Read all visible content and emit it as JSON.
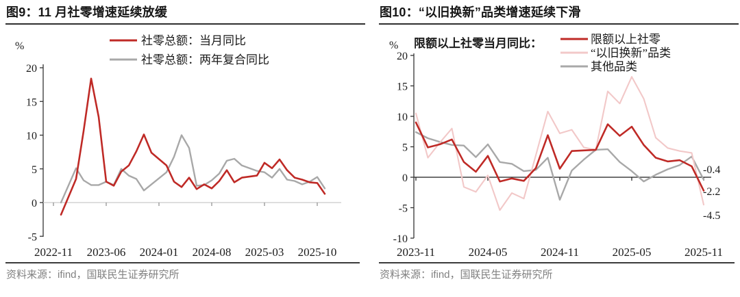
{
  "panels": [
    {
      "title": "图9：11 月社零增速延续放缓",
      "source_note": "资料来源：ifind，国联民生证券研究所"
    },
    {
      "title": "图10：“以旧换新”品类增速延续下滑",
      "source_note": "资料来源：ifind，国联民生证券研究所"
    }
  ],
  "colors": {
    "red": "#bf2a26",
    "pink": "#f2c8c8",
    "gray": "#a8a8a8",
    "axis": "#333333",
    "zero_left": "#c9c9c9",
    "zero_right": "#1a1a1a",
    "title": "#161616",
    "source": "#808080"
  },
  "chart_data": [
    {
      "type": "line",
      "title": "图9：11 月社零增速延续放缓",
      "unit_label": "%",
      "ylim": [
        -5,
        20
      ],
      "yticks": [
        20,
        15,
        10,
        5,
        0,
        -5
      ],
      "grid": false,
      "legend_position": "top-center",
      "x_base_month": "2022-11",
      "x_tick_labels": [
        "2022-11",
        "2023-06",
        "2024-01",
        "2024-08",
        "2025-03",
        "2025-10"
      ],
      "series": [
        {
          "name": "社零总额：当月同比",
          "color": "red",
          "months": [
            "2022-12",
            "2023-02",
            "2023-03",
            "2023-04",
            "2023-05",
            "2023-06",
            "2023-07",
            "2023-08",
            "2023-09",
            "2023-10",
            "2023-11",
            "2023-12",
            "2024-02",
            "2024-03",
            "2024-04",
            "2024-05",
            "2024-06",
            "2024-07",
            "2024-08",
            "2024-09",
            "2024-10",
            "2024-11",
            "2024-12",
            "2025-02",
            "2025-03",
            "2025-04",
            "2025-05",
            "2025-06",
            "2025-07",
            "2025-08",
            "2025-09",
            "2025-10",
            "2025-11"
          ],
          "values": [
            -1.8,
            3.5,
            10.6,
            18.4,
            12.7,
            3.1,
            2.5,
            4.6,
            5.5,
            7.6,
            10.1,
            7.4,
            5.5,
            3.1,
            2.3,
            3.7,
            2.0,
            2.7,
            2.1,
            3.2,
            4.8,
            3.0,
            3.7,
            4.0,
            5.9,
            5.1,
            6.4,
            4.8,
            3.7,
            3.4,
            3.0,
            2.9,
            1.3
          ]
        },
        {
          "name": "社零总额：两年复合同比",
          "color": "gray",
          "months": [
            "2022-12",
            "2023-02",
            "2023-03",
            "2023-04",
            "2023-05",
            "2023-06",
            "2023-07",
            "2023-08",
            "2023-09",
            "2023-10",
            "2023-11",
            "2023-12",
            "2024-02",
            "2024-03",
            "2024-04",
            "2024-05",
            "2024-06",
            "2024-07",
            "2024-08",
            "2024-09",
            "2024-10",
            "2024-11",
            "2024-12",
            "2025-02",
            "2025-03",
            "2025-04",
            "2025-05",
            "2025-06",
            "2025-07",
            "2025-08",
            "2025-09",
            "2025-10",
            "2025-11"
          ],
          "values": [
            0.0,
            5.1,
            3.3,
            2.6,
            2.6,
            3.1,
            2.6,
            5.0,
            4.0,
            3.5,
            1.8,
            2.7,
            4.5,
            6.8,
            10.0,
            8.1,
            2.5,
            2.6,
            3.3,
            4.3,
            6.2,
            6.5,
            5.5,
            4.7,
            4.5,
            3.7,
            5.0,
            3.4,
            3.2,
            2.7,
            3.1,
            3.8,
            2.1
          ]
        }
      ]
    },
    {
      "type": "line",
      "title": "图10：“以旧换新”品类增速延续下滑",
      "unit_label": "%",
      "inline_label": "限额以上社零当月同比：",
      "ylim": [
        -10,
        20
      ],
      "yticks": [
        20,
        15,
        10,
        5,
        0,
        -5,
        -10
      ],
      "grid": false,
      "legend_position": "top-right",
      "x_base_month": "2023-11",
      "x_tick_labels": [
        "2023-11",
        "2024-05",
        "2024-11",
        "2025-05",
        "2025-11"
      ],
      "series": [
        {
          "name": "限额以上社零",
          "color": "red",
          "months": [
            "2023-11",
            "2023-12",
            "2024-01",
            "2024-02",
            "2024-03",
            "2024-04",
            "2024-05",
            "2024-06",
            "2024-07",
            "2024-08",
            "2024-09",
            "2024-10",
            "2024-11",
            "2024-12",
            "2025-01",
            "2025-02",
            "2025-03",
            "2025-04",
            "2025-05",
            "2025-06",
            "2025-07",
            "2025-08",
            "2025-09",
            "2025-10",
            "2025-11"
          ],
          "values": [
            9.0,
            4.9,
            5.4,
            6.2,
            2.5,
            0.9,
            3.5,
            -0.7,
            -0.2,
            -0.6,
            1.5,
            6.9,
            1.4,
            4.3,
            4.4,
            4.5,
            8.7,
            6.8,
            8.3,
            5.3,
            3.2,
            2.6,
            2.8,
            1.8,
            -2.2
          ]
        },
        {
          "name": "“以旧换新”品类",
          "color": "pink",
          "months": [
            "2023-11",
            "2023-12",
            "2024-01",
            "2024-02",
            "2024-03",
            "2024-04",
            "2024-05",
            "2024-06",
            "2024-07",
            "2024-08",
            "2024-09",
            "2024-10",
            "2024-11",
            "2024-12",
            "2025-01",
            "2025-02",
            "2025-03",
            "2025-04",
            "2025-05",
            "2025-06",
            "2025-07",
            "2025-08",
            "2025-09",
            "2025-10",
            "2025-11"
          ],
          "values": [
            10.5,
            3.2,
            5.7,
            8.0,
            -1.6,
            -2.4,
            0.3,
            -5.4,
            -2.6,
            -3.5,
            3.6,
            10.8,
            7.2,
            7.8,
            4.9,
            4.5,
            14.1,
            12.1,
            16.5,
            12.9,
            6.5,
            4.8,
            4.3,
            4.0,
            -4.5
          ]
        },
        {
          "name": "其他品类",
          "color": "gray",
          "months": [
            "2023-11",
            "2023-12",
            "2024-01",
            "2024-02",
            "2024-03",
            "2024-04",
            "2024-05",
            "2024-06",
            "2024-07",
            "2024-08",
            "2024-09",
            "2024-10",
            "2024-11",
            "2024-12",
            "2025-01",
            "2025-02",
            "2025-03",
            "2025-04",
            "2025-05",
            "2025-06",
            "2025-07",
            "2025-08",
            "2025-09",
            "2025-10",
            "2025-11"
          ],
          "values": [
            7.4,
            6.4,
            5.8,
            5.3,
            5.2,
            3.3,
            5.4,
            2.5,
            2.2,
            1.0,
            1.2,
            3.2,
            -3.7,
            1.1,
            2.9,
            4.5,
            4.6,
            2.5,
            1.0,
            -0.7,
            0.4,
            1.3,
            2.0,
            3.4,
            -0.4
          ]
        }
      ],
      "end_labels": [
        {
          "text": "-0.4",
          "series": "其他品类",
          "y_value": 1.35
        },
        {
          "text": "-2.2",
          "series": "限额以上社零",
          "y_value": -2.25
        },
        {
          "text": "-4.5",
          "series": "“以旧换新”品类",
          "y_value": -6.2
        }
      ]
    }
  ]
}
